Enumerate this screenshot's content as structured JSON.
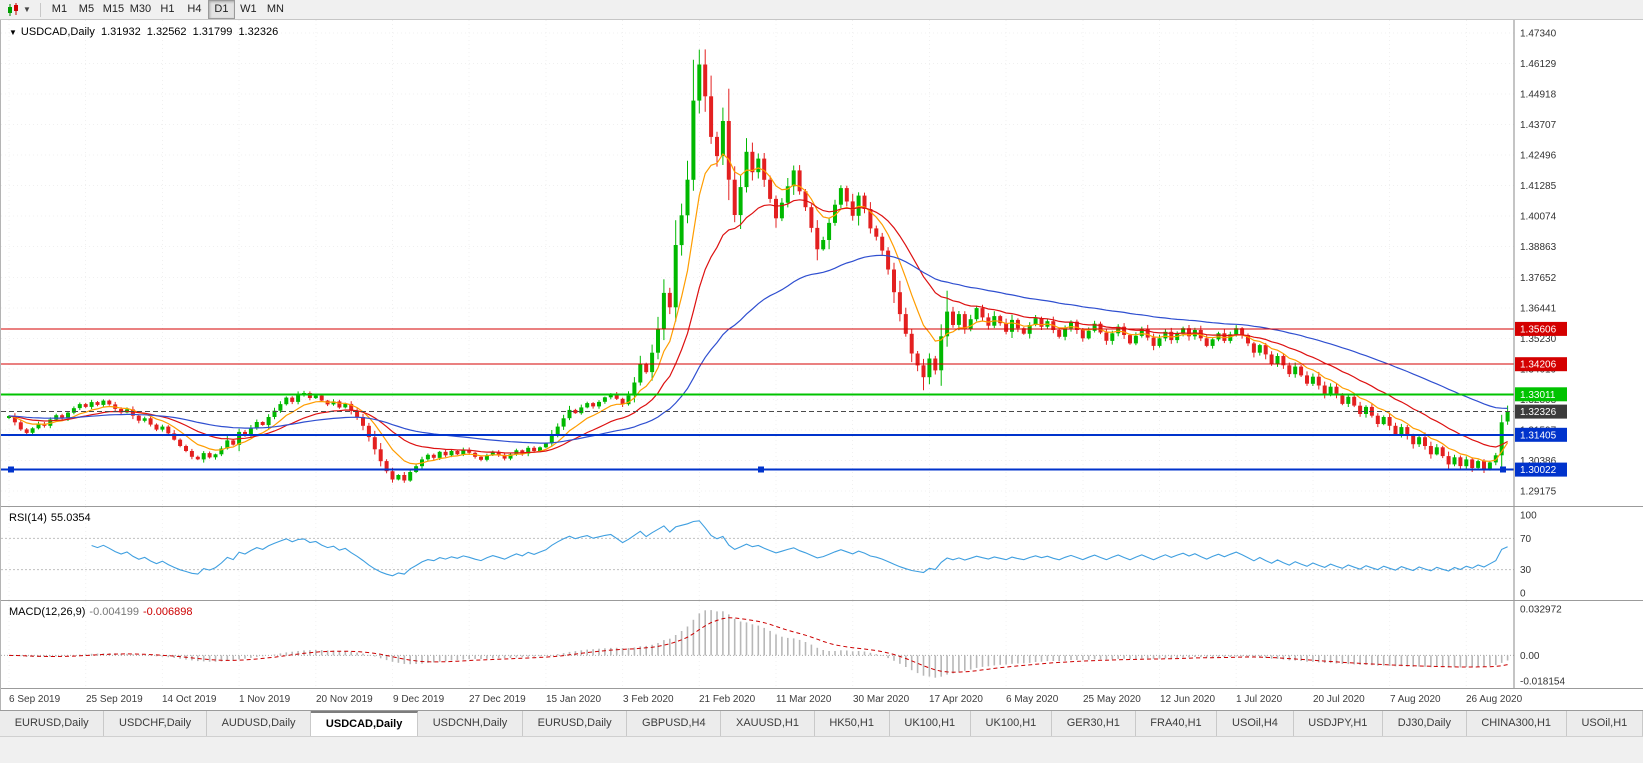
{
  "toolbar": {
    "timeframes": [
      "M1",
      "M5",
      "M15",
      "M30",
      "H1",
      "H4",
      "D1",
      "W1",
      "MN"
    ],
    "active_timeframe": "D1"
  },
  "chart_header": {
    "symbol_period": "USDCAD,Daily",
    "open": "1.31932",
    "high": "1.32562",
    "low": "1.31799",
    "close": "1.32326"
  },
  "price_scale": {
    "top_value": 1.4734,
    "bottom_value": 1.29175,
    "labels": [
      "1.47340",
      "1.46129",
      "1.44918",
      "1.43707",
      "1.42496",
      "1.41285",
      "1.40074",
      "1.38863",
      "1.37652",
      "1.36441",
      "1.35230",
      "1.34019",
      "1.32808",
      "1.31597",
      "1.30386",
      "1.29175"
    ]
  },
  "levels": [
    {
      "label": "1.35606",
      "value": 1.35606,
      "color": "#d40000",
      "style": "solid",
      "width": 1
    },
    {
      "label": "1.34206",
      "value": 1.34206,
      "color": "#d40000",
      "style": "solid",
      "width": 1
    },
    {
      "label": "1.33011",
      "value": 1.33011,
      "color": "#00c300",
      "style": "solid",
      "width": 2
    },
    {
      "label": "1.32326",
      "value": 1.32326,
      "color": "#4a4a4a",
      "style": "dashed",
      "width": 1,
      "badge_color": "#3b3b3b",
      "is_current_price": true
    },
    {
      "label": "1.31405",
      "value": 1.31405,
      "color": "#0033cc",
      "style": "solid",
      "width": 2
    },
    {
      "label": "1.30022",
      "value": 1.30022,
      "color": "#0033cc",
      "style": "solid",
      "width": 2,
      "selected": true
    }
  ],
  "rsi_panel": {
    "name": "RSI(14)",
    "value": "55.0354",
    "scale_labels": [
      "100",
      "70",
      "30",
      "0"
    ],
    "level_lines": [
      70,
      30
    ],
    "line_color": "#3f9fe0"
  },
  "macd_panel": {
    "name": "MACD(12,26,9)",
    "main_value": "-0.004199",
    "signal_value": "-0.006898",
    "scale_top": "0.032972",
    "scale_zero": "0.00",
    "scale_bottom": "-0.018154",
    "histogram_color": "#b8b8b8",
    "signal_color": "#cc0000"
  },
  "date_axis": [
    "6 Sep 2019",
    "25 Sep 2019",
    "14 Oct 2019",
    "1 Nov 2019",
    "20 Nov 2019",
    "9 Dec 2019",
    "27 Dec 2019",
    "15 Jan 2020",
    "3 Feb 2020",
    "21 Feb 2020",
    "11 Mar 2020",
    "30 Mar 2020",
    "17 Apr 2020",
    "6 May 2020",
    "25 May 2020",
    "12 Jun 2020",
    "1 Jul 2020",
    "20 Jul 2020",
    "7 Aug 2020",
    "26 Aug 2020"
  ],
  "tabs": [
    "EURUSD,Daily",
    "USDCHF,Daily",
    "AUDUSD,Daily",
    "USDCAD,Daily",
    "USDCNH,Daily",
    "EURUSD,Daily",
    "GBPUSD,H4",
    "XAUUSD,H1",
    "HK50,H1",
    "UK100,H1",
    "UK100,H1",
    "GER30,H1",
    "FRA40,H1",
    "USOil,H4",
    "USDJPY,H1",
    "DJ30,Daily",
    "CHINA300,H1",
    "USOil,H1"
  ],
  "active_tab_index": 3,
  "chart_data": {
    "type": "candlestick",
    "symbol": "USDCAD",
    "timeframe": "Daily",
    "up_color": "#00b800",
    "down_color": "#e32020",
    "y_range": [
      1.29175,
      1.4734
    ],
    "last_candle": {
      "open": 1.31932,
      "high": 1.32562,
      "low": 1.31799,
      "close": 1.32326
    },
    "closes": [
      1.3215,
      1.319,
      1.3162,
      1.3148,
      1.3166,
      1.3184,
      1.3176,
      1.3201,
      1.3218,
      1.3206,
      1.3228,
      1.3246,
      1.3262,
      1.3251,
      1.327,
      1.3259,
      1.3276,
      1.3261,
      1.3243,
      1.3229,
      1.3241,
      1.3216,
      1.3196,
      1.3206,
      1.3181,
      1.3161,
      1.3173,
      1.3146,
      1.3121,
      1.3096,
      1.3076,
      1.3053,
      1.3043,
      1.3068,
      1.3051,
      1.3063,
      1.3086,
      1.3118,
      1.3101,
      1.3152,
      1.3139,
      1.3166,
      1.3191,
      1.3179,
      1.3211,
      1.3236,
      1.3262,
      1.3288,
      1.3271,
      1.3298,
      1.3306,
      1.3286,
      1.3296,
      1.3276,
      1.3261,
      1.3273,
      1.3249,
      1.3263,
      1.3236,
      1.3211,
      1.3176,
      1.3131,
      1.3083,
      1.3036,
      1.2996,
      1.2963,
      1.2981,
      1.2959,
      1.2993,
      1.3016,
      1.3043,
      1.3061,
      1.3049,
      1.3073,
      1.3059,
      1.3076,
      1.3063,
      1.3081,
      1.3069,
      1.3053,
      1.3041,
      1.3059,
      1.3073,
      1.3061,
      1.3046,
      1.3063,
      1.3079,
      1.3066,
      1.3089,
      1.3076,
      1.3091,
      1.3106,
      1.3141,
      1.3173,
      1.3206,
      1.3239,
      1.3226,
      1.3249,
      1.3266,
      1.3253,
      1.3271,
      1.3289,
      1.3301,
      1.3283,
      1.3262,
      1.3296,
      1.3348,
      1.3421,
      1.3389,
      1.3466,
      1.3559,
      1.3703,
      1.3646,
      1.3893,
      1.4011,
      1.4152,
      1.4466,
      1.4609,
      1.4483,
      1.4322,
      1.4246,
      1.4385,
      1.4152,
      1.4012,
      1.4123,
      1.4263,
      1.4182,
      1.4236,
      1.4152,
      1.4076,
      1.3999,
      1.4061,
      1.4126,
      1.4189,
      1.4106,
      1.4043,
      1.3961,
      1.3876,
      1.3913,
      1.3981,
      1.4053,
      1.4119,
      1.4066,
      1.4009,
      1.4089,
      1.4036,
      1.3959,
      1.3926,
      1.3871,
      1.3796,
      1.3706,
      1.3619,
      1.3541,
      1.3463,
      1.3416,
      1.3369,
      1.3443,
      1.3396,
      1.3531,
      1.3629,
      1.3576,
      1.3619,
      1.3561,
      1.3599,
      1.3643,
      1.3606,
      1.3573,
      1.3611,
      1.3583,
      1.3549,
      1.3596,
      1.3563,
      1.3541,
      1.3576,
      1.3603,
      1.3569,
      1.3591,
      1.3556,
      1.3529,
      1.3563,
      1.3589,
      1.3556,
      1.3523,
      1.3553,
      1.3581,
      1.3546,
      1.3513,
      1.3543,
      1.3569,
      1.3536,
      1.3503,
      1.3533,
      1.3559,
      1.3526,
      1.3493,
      1.3523,
      1.3549,
      1.3516,
      1.3541,
      1.3563,
      1.3531,
      1.3556,
      1.3523,
      1.3493,
      1.3519,
      1.3543,
      1.3513,
      1.3539,
      1.3563,
      1.3536,
      1.3503,
      1.3466,
      1.3496,
      1.3459,
      1.3423,
      1.3453,
      1.3416,
      1.3381,
      1.3411,
      1.3376,
      1.3343,
      1.3371,
      1.3336,
      1.3303,
      1.3331,
      1.3296,
      1.3263,
      1.3291,
      1.3256,
      1.3223,
      1.3251,
      1.3216,
      1.3183,
      1.3211,
      1.3176,
      1.3143,
      1.3171,
      1.3136,
      1.3103,
      1.3131,
      1.3096,
      1.3063,
      1.3091,
      1.3056,
      1.3023,
      1.3051,
      1.3016,
      1.3043,
      1.3009,
      1.3036,
      1.3004,
      1.3031,
      1.3059,
      1.319,
      1.32326
    ],
    "overrides": {
      "65": [
        null,
        null,
        1.2951,
        null
      ],
      "67": [
        null,
        null,
        1.295,
        null
      ],
      "117": [
        null,
        1.4668,
        null,
        null
      ],
      "121": [
        null,
        1.4438,
        null,
        null
      ],
      "155": [
        null,
        null,
        1.3317,
        null
      ],
      "159": [
        null,
        1.3712,
        null,
        null
      ],
      "248": [
        null,
        null,
        1.2993,
        null
      ],
      "250": [
        null,
        null,
        1.2989,
        null
      ],
      "254": [
        1.31932,
        1.32562,
        1.31799,
        1.32326
      ]
    },
    "moving_averages": [
      {
        "type": "ema",
        "period": 8,
        "color": "#ff9d00"
      },
      {
        "type": "ema",
        "period": 20,
        "color": "#dd1111"
      },
      {
        "type": "ema",
        "period": 55,
        "color": "#2f4fd0"
      }
    ],
    "indicators": [
      {
        "type": "rsi",
        "period": 14,
        "current": 55.0354
      },
      {
        "type": "macd",
        "fast": 12,
        "slow": 26,
        "signal": 9,
        "current_main": -0.004199,
        "current_signal": -0.006898
      }
    ]
  }
}
